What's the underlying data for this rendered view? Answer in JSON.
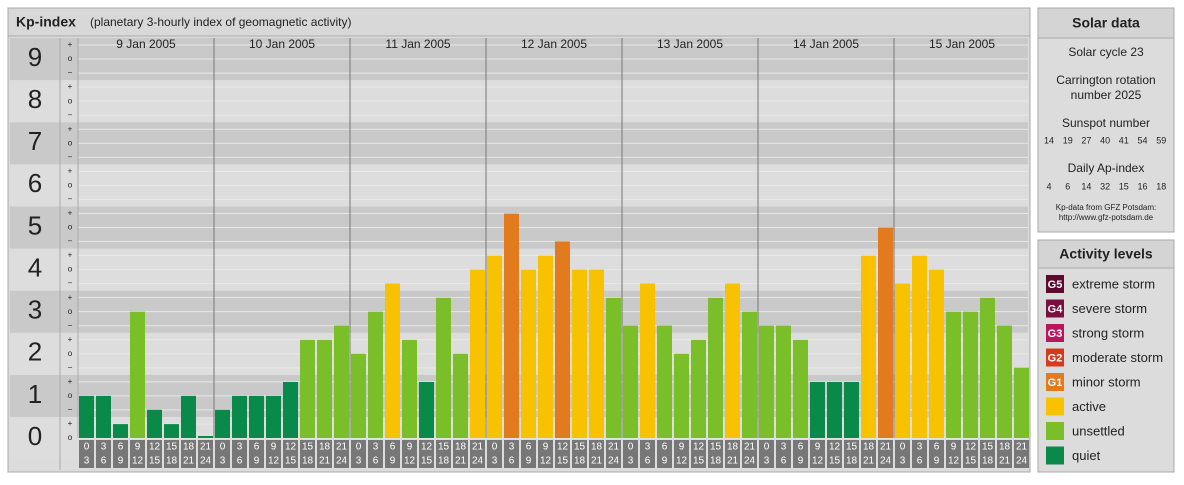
{
  "chart_data": {
    "type": "bar",
    "title": "Kp-index",
    "subtitle": "(planetary 3-hourly index of geomagnetic activity)",
    "ylim": [
      0,
      9.5
    ],
    "yticks": [
      0,
      1,
      2,
      3,
      4,
      5,
      6,
      7,
      8,
      9
    ],
    "minor_labels": [
      "−",
      "o",
      "+"
    ],
    "hours": [
      [
        "0",
        "3"
      ],
      [
        "3",
        "6"
      ],
      [
        "6",
        "9"
      ],
      [
        "9",
        "12"
      ],
      [
        "12",
        "15"
      ],
      [
        "15",
        "18"
      ],
      [
        "18",
        "21"
      ],
      [
        "21",
        "24"
      ]
    ],
    "days": [
      {
        "date": "9 Jan 2005",
        "values": [
          1,
          1,
          0.33,
          3,
          0.67,
          0.33,
          1,
          0
        ],
        "colors": [
          "#0a8a4a",
          "#0a8a4a",
          "#0a8a4a",
          "#7abf2a",
          "#0a8a4a",
          "#0a8a4a",
          "#0a8a4a",
          "#0a8a4a"
        ]
      },
      {
        "date": "10 Jan 2005",
        "values": [
          0.67,
          1,
          1,
          1,
          1.33,
          2.33,
          2.33,
          2.67
        ],
        "colors": [
          "#0a8a4a",
          "#0a8a4a",
          "#0a8a4a",
          "#0a8a4a",
          "#0a8a4a",
          "#7abf2a",
          "#7abf2a",
          "#7abf2a"
        ]
      },
      {
        "date": "11 Jan 2005",
        "values": [
          2,
          3,
          3.67,
          2.33,
          1.33,
          3.33,
          2,
          4
        ],
        "colors": [
          "#7abf2a",
          "#7abf2a",
          "#f8c200",
          "#7abf2a",
          "#0a8a4a",
          "#7abf2a",
          "#7abf2a",
          "#f8c200"
        ]
      },
      {
        "date": "12 Jan 2005",
        "values": [
          4.33,
          5.33,
          4,
          4.33,
          4.67,
          4,
          4,
          3.33
        ],
        "colors": [
          "#f8c200",
          "#e27a1e",
          "#f8c200",
          "#f8c200",
          "#e27a1e",
          "#f8c200",
          "#f8c200",
          "#7abf2a"
        ]
      },
      {
        "date": "13 Jan 2005",
        "values": [
          2.67,
          3.67,
          2.67,
          2,
          2.33,
          3.33,
          3.67,
          3
        ],
        "colors": [
          "#7abf2a",
          "#f8c200",
          "#7abf2a",
          "#7abf2a",
          "#7abf2a",
          "#7abf2a",
          "#f8c200",
          "#7abf2a"
        ]
      },
      {
        "date": "14 Jan 2005",
        "values": [
          2.67,
          2.67,
          2.33,
          1.33,
          1.33,
          1.33,
          4.33,
          5
        ],
        "colors": [
          "#7abf2a",
          "#7abf2a",
          "#7abf2a",
          "#0a8a4a",
          "#0a8a4a",
          "#0a8a4a",
          "#f8c200",
          "#e27a1e"
        ]
      },
      {
        "date": "15 Jan 2005",
        "values": [
          3.67,
          4.33,
          4,
          3,
          3,
          3.33,
          2.67,
          1.67
        ],
        "colors": [
          "#f8c200",
          "#f8c200",
          "#f8c200",
          "#7abf2a",
          "#7abf2a",
          "#7abf2a",
          "#7abf2a",
          "#7abf2a"
        ]
      }
    ]
  },
  "solar_data": {
    "title": "Solar data",
    "cycle": "Solar cycle 23",
    "carrington": [
      "Carrington rotation",
      "number 2025"
    ],
    "sunspot_title": "Sunspot number",
    "sunspot": [
      14,
      19,
      27,
      40,
      41,
      54,
      59
    ],
    "ap_title": "Daily Ap-index",
    "ap": [
      4,
      6,
      14,
      32,
      15,
      16,
      18
    ],
    "source": [
      "Kp-data from GFZ Potsdam:",
      "http://www.gfz-potsdam.de"
    ]
  },
  "activity_levels": {
    "title": "Activity levels",
    "items": [
      {
        "badge": "G5",
        "label": "extreme storm",
        "color": "#5c0a2e"
      },
      {
        "badge": "G4",
        "label": "severe storm",
        "color": "#7a1040"
      },
      {
        "badge": "G3",
        "label": "strong storm",
        "color": "#b8175e"
      },
      {
        "badge": "G2",
        "label": "moderate storm",
        "color": "#d63a1e"
      },
      {
        "badge": "G1",
        "label": "minor storm",
        "color": "#e27a1e"
      },
      {
        "label": "active",
        "color": "#f8c200"
      },
      {
        "label": "unsettled",
        "color": "#7abf2a"
      },
      {
        "label": "quiet",
        "color": "#0a8a4a"
      }
    ]
  }
}
